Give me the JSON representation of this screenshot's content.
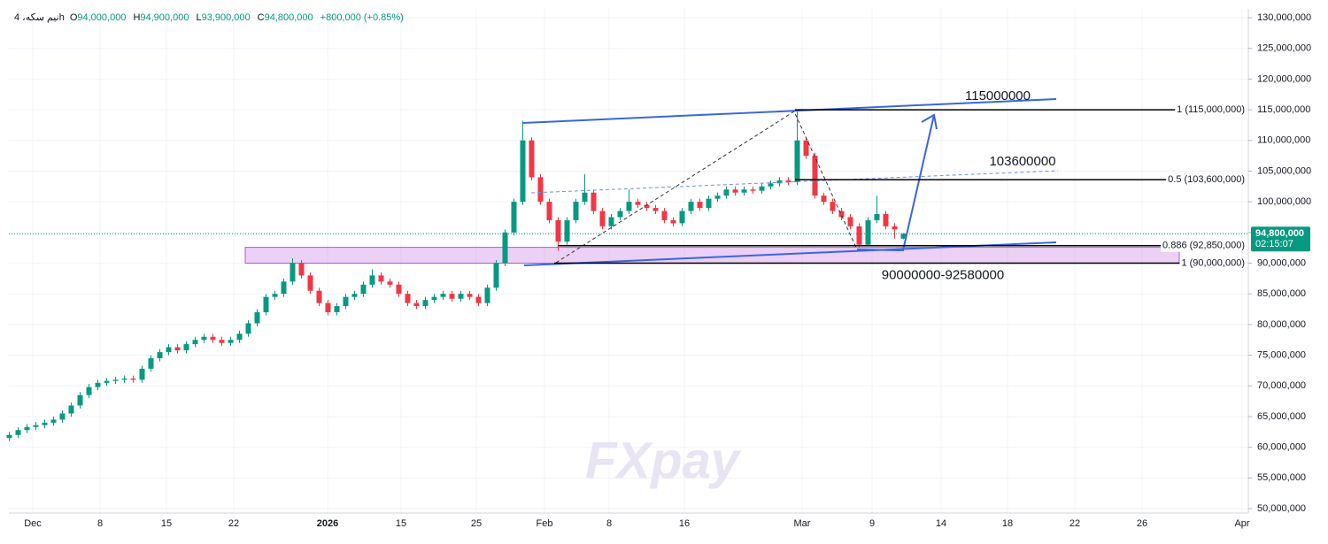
{
  "chart_data": {
    "type": "candlestick",
    "legend": {
      "symbol": "نیم سکه، 4h",
      "items": [
        {
          "label": "O",
          "value": "94,000,000"
        },
        {
          "label": "H",
          "value": "94,900,000"
        },
        {
          "label": "L",
          "value": "93,900,000"
        },
        {
          "label": "C",
          "value": "94,800,000"
        }
      ],
      "change": "+800,000 (+0.85%)"
    },
    "up_color": "#089981",
    "down_color": "#f23645",
    "grid": true,
    "xlim": [
      0,
      140
    ],
    "xticks": [
      {
        "value": 2.7,
        "label": "Dec"
      },
      {
        "value": 10.3,
        "label": "8"
      },
      {
        "value": 17.8,
        "label": "15"
      },
      {
        "value": 25.4,
        "label": "22"
      },
      {
        "value": 36,
        "label": "2026"
      },
      {
        "value": 44.3,
        "label": "15"
      },
      {
        "value": 52.8,
        "label": "25"
      },
      {
        "value": 60.5,
        "label": "Feb"
      },
      {
        "value": 67.8,
        "label": "8"
      },
      {
        "value": 76.3,
        "label": "16"
      },
      {
        "value": 89.6,
        "label": "Mar"
      },
      {
        "value": 97.5,
        "label": "9"
      },
      {
        "value": 105.3,
        "label": "14"
      },
      {
        "value": 112.8,
        "label": "18"
      },
      {
        "value": 120.4,
        "label": "22"
      },
      {
        "value": 128,
        "label": "26"
      },
      {
        "value": 139.3,
        "label": "Apr"
      }
    ],
    "ylim": [
      50000000,
      130000000
    ],
    "yticks": [
      {
        "value": 50000000,
        "label": "50,000,000"
      },
      {
        "value": 55000000,
        "label": "55,000,000"
      },
      {
        "value": 60000000,
        "label": "60,000,000"
      },
      {
        "value": 65000000,
        "label": "65,000,000"
      },
      {
        "value": 70000000,
        "label": "70,000,000"
      },
      {
        "value": 75000000,
        "label": "75,000,000"
      },
      {
        "value": 80000000,
        "label": "80,000,000"
      },
      {
        "value": 85000000,
        "label": "85,000,000"
      },
      {
        "value": 90000000,
        "label": "90,000,000"
      },
      {
        "value": 95000000,
        "label": "95,000,000"
      },
      {
        "value": 100000000,
        "label": "100,000,000"
      },
      {
        "value": 105000000,
        "label": "105,000,000"
      },
      {
        "value": 110000000,
        "label": "110,000,000"
      },
      {
        "value": 115000000,
        "label": "115,000,000"
      },
      {
        "value": 120000000,
        "label": "120,000,000"
      },
      {
        "value": 125000000,
        "label": "125,000,000"
      },
      {
        "value": 130000000,
        "label": "130,000,000"
      }
    ],
    "candles": [
      [
        61500000,
        62500000,
        61000000,
        62000000
      ],
      [
        62000000,
        63300000,
        61500000,
        62800000
      ],
      [
        62800000,
        63800000,
        62300000,
        63300000
      ],
      [
        63300000,
        64100000,
        62800000,
        63600000
      ],
      [
        63600000,
        64500000,
        63100000,
        64000000
      ],
      [
        64000000,
        65000000,
        63500000,
        64500000
      ],
      [
        64500000,
        66000000,
        64000000,
        65500000
      ],
      [
        65500000,
        67300000,
        65000000,
        66800000
      ],
      [
        66800000,
        69000000,
        66300000,
        68500000
      ],
      [
        68500000,
        70300000,
        68000000,
        69800000
      ],
      [
        69800000,
        71000000,
        69300000,
        70500000
      ],
      [
        70500000,
        71300000,
        70000000,
        70800000
      ],
      [
        70800000,
        71500000,
        70300000,
        71000000
      ],
      [
        71000000,
        71700000,
        70500000,
        71200000
      ],
      [
        71200000,
        71700000,
        70500000,
        71000000
      ],
      [
        71000000,
        73300000,
        70500000,
        72800000
      ],
      [
        72800000,
        75000000,
        72300000,
        74500000
      ],
      [
        74500000,
        76000000,
        74000000,
        75500000
      ],
      [
        75500000,
        76800000,
        75000000,
        76300000
      ],
      [
        76300000,
        76800000,
        75300000,
        75800000
      ],
      [
        75800000,
        77300000,
        75300000,
        76800000
      ],
      [
        76800000,
        78000000,
        76300000,
        77500000
      ],
      [
        77500000,
        78500000,
        77000000,
        78000000
      ],
      [
        78000000,
        78500000,
        77000000,
        77500000
      ],
      [
        77500000,
        78000000,
        76500000,
        77000000
      ],
      [
        77000000,
        78000000,
        76500000,
        77500000
      ],
      [
        77500000,
        79000000,
        77000000,
        78500000
      ],
      [
        78500000,
        80700000,
        78000000,
        80200000
      ],
      [
        80200000,
        82500000,
        79700000,
        82000000
      ],
      [
        82000000,
        85000000,
        81500000,
        84500000
      ],
      [
        84500000,
        85500000,
        84000000,
        85000000
      ],
      [
        85000000,
        87500000,
        84500000,
        87000000
      ],
      [
        87000000,
        90800000,
        86500000,
        90000000
      ],
      [
        90000000,
        90500000,
        87500000,
        88000000
      ],
      [
        88000000,
        88500000,
        85000000,
        85500000
      ],
      [
        85500000,
        86000000,
        83000000,
        83500000
      ],
      [
        83500000,
        84000000,
        81500000,
        82000000
      ],
      [
        82000000,
        83500000,
        81500000,
        83000000
      ],
      [
        83000000,
        85000000,
        82500000,
        84500000
      ],
      [
        84500000,
        85500000,
        84000000,
        85000000
      ],
      [
        85000000,
        87000000,
        84500000,
        86500000
      ],
      [
        86500000,
        89000000,
        86000000,
        88000000
      ],
      [
        88000000,
        88500000,
        86500000,
        87000000
      ],
      [
        87000000,
        87500000,
        86000000,
        86500000
      ],
      [
        86500000,
        87000000,
        84500000,
        85000000
      ],
      [
        85000000,
        85500000,
        83000000,
        83500000
      ],
      [
        83500000,
        84000000,
        82500000,
        83000000
      ],
      [
        83000000,
        84500000,
        82500000,
        84000000
      ],
      [
        84000000,
        85000000,
        83500000,
        84500000
      ],
      [
        84500000,
        85500000,
        84000000,
        85000000
      ],
      [
        85000000,
        85500000,
        83700000,
        84200000
      ],
      [
        84200000,
        85500000,
        83700000,
        85000000
      ],
      [
        85000000,
        85500000,
        84000000,
        84500000
      ],
      [
        84500000,
        85000000,
        83000000,
        83500000
      ],
      [
        83500000,
        86500000,
        83000000,
        86000000
      ],
      [
        86000000,
        90500000,
        85500000,
        90000000
      ],
      [
        90000000,
        95500000,
        89500000,
        95000000
      ],
      [
        95000000,
        100500000,
        94500000,
        100000000
      ],
      [
        100000000,
        113200000,
        99500000,
        110000000
      ],
      [
        110000000,
        110500000,
        103500000,
        104000000
      ],
      [
        104000000,
        104500000,
        99500000,
        100000000
      ],
      [
        100000000,
        100500000,
        96500000,
        97000000
      ],
      [
        97000000,
        97500000,
        92000000,
        93500000
      ],
      [
        93500000,
        97500000,
        93000000,
        97000000
      ],
      [
        97000000,
        100500000,
        96500000,
        100000000
      ],
      [
        100000000,
        104500000,
        99500000,
        101500000
      ],
      [
        101500000,
        102000000,
        98000000,
        98500000
      ],
      [
        98500000,
        99000000,
        95500000,
        96000000
      ],
      [
        96000000,
        98000000,
        95500000,
        97500000
      ],
      [
        97500000,
        99000000,
        97000000,
        98500000
      ],
      [
        98500000,
        102000000,
        98000000,
        100000000
      ],
      [
        100000000,
        100500000,
        99000000,
        99500000
      ],
      [
        99500000,
        100000000,
        98500000,
        99000000
      ],
      [
        99000000,
        99500000,
        98000000,
        98500000
      ],
      [
        98500000,
        99000000,
        96500000,
        97000000
      ],
      [
        97000000,
        97500000,
        96000000,
        96500000
      ],
      [
        96500000,
        99000000,
        96000000,
        98500000
      ],
      [
        98500000,
        100500000,
        98000000,
        100000000
      ],
      [
        100000000,
        100500000,
        98500000,
        99000000
      ],
      [
        99000000,
        101000000,
        98500000,
        100500000
      ],
      [
        100500000,
        101500000,
        100000000,
        101000000
      ],
      [
        101000000,
        102500000,
        100500000,
        102000000
      ],
      [
        102000000,
        102500000,
        101000000,
        101500000
      ],
      [
        101500000,
        102500000,
        101000000,
        102000000
      ],
      [
        102000000,
        102500000,
        101300000,
        101800000
      ],
      [
        101800000,
        103000000,
        101300000,
        102500000
      ],
      [
        102500000,
        103500000,
        102000000,
        103000000
      ],
      [
        103000000,
        104000000,
        102500000,
        103500000
      ],
      [
        103500000,
        104000000,
        102700000,
        103200000
      ],
      [
        103200000,
        115000000,
        102700000,
        110000000
      ],
      [
        110000000,
        110500000,
        107000000,
        107500000
      ],
      [
        107500000,
        108000000,
        100500000,
        101000000
      ],
      [
        101000000,
        101500000,
        99500000,
        100000000
      ],
      [
        100000000,
        100500000,
        98000000,
        98500000
      ],
      [
        98500000,
        99000000,
        97000000,
        97500000
      ],
      [
        97500000,
        98000000,
        95500000,
        96000000
      ],
      [
        96000000,
        96500000,
        92600000,
        93000000
      ],
      [
        93000000,
        97500000,
        92800000,
        97000000
      ],
      [
        97000000,
        101000000,
        96500000,
        98000000
      ],
      [
        98000000,
        98500000,
        95500000,
        96000000
      ],
      [
        96000000,
        96500000,
        94000000,
        95500000
      ],
      [
        94000000,
        94900000,
        93900000,
        94800000
      ]
    ],
    "fib_levels": [
      {
        "value": 115000000,
        "label": "1 (115,000,000)"
      },
      {
        "value": 103600000,
        "label": "0.5 (103,600,000)"
      },
      {
        "value": 92850000,
        "label": "0.886 (92,850,000)"
      },
      {
        "value": 90000000,
        "label": "1 (90,000,000)"
      }
    ],
    "zone": {
      "low": 90000000,
      "high": 92580000,
      "label": "90000000-92580000"
    },
    "annotations": [
      "115000000",
      "103600000"
    ],
    "last_price": {
      "value": 94800000,
      "label": "94,800,000",
      "countdown": "02:15:07"
    },
    "watermark": "FXpay"
  }
}
